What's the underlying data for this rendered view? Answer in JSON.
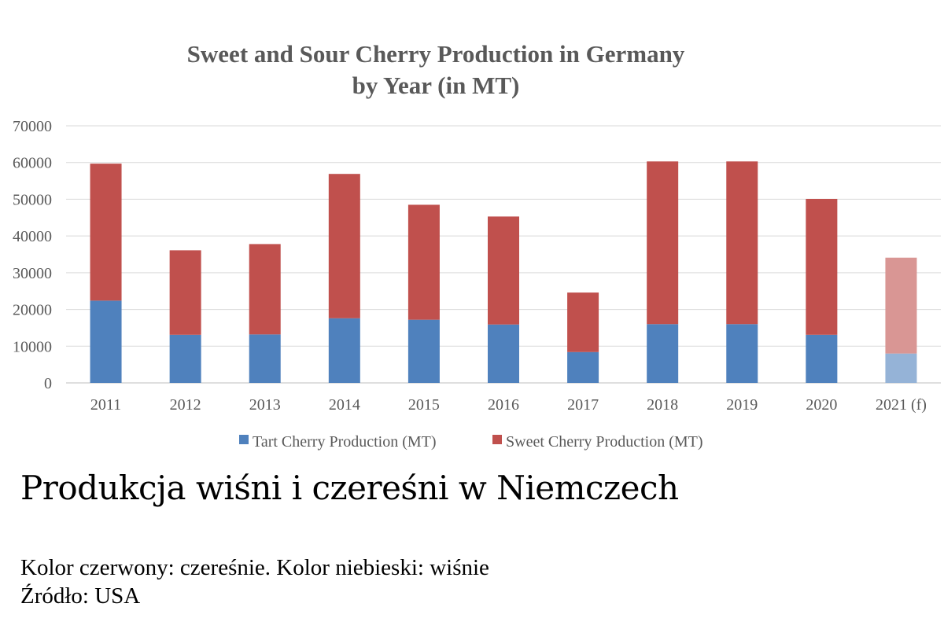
{
  "chart_data": {
    "type": "bar",
    "stacked": true,
    "title_lines": [
      "Sweet and Sour Cherry Production in Germany",
      "by Year (in MT)"
    ],
    "categories": [
      "2011",
      "2012",
      "2013",
      "2014",
      "2015",
      "2016",
      "2017",
      "2018",
      "2019",
      "2020",
      "2021 (f)"
    ],
    "series": [
      {
        "name": "Tart Cherry Production (MT)",
        "color": "#4f81bd",
        "forecast_color": "#95b3d7",
        "values": [
          22400,
          13100,
          13200,
          17600,
          17200,
          15900,
          8400,
          16000,
          16000,
          13100,
          8000
        ]
      },
      {
        "name": "Sweet Cherry Production (MT)",
        "color": "#c0504d",
        "forecast_color": "#d99694",
        "values": [
          37300,
          23000,
          24600,
          39300,
          31300,
          29400,
          16200,
          44300,
          44300,
          37000,
          26100
        ]
      }
    ],
    "forecast_index": 10,
    "ylim": [
      0,
      70000
    ],
    "yticks": [
      0,
      10000,
      20000,
      30000,
      40000,
      50000,
      60000,
      70000
    ],
    "grid": true,
    "legend_position": "bottom"
  },
  "caption": {
    "heading": "Produkcja wiśni i czereśni w Niemczech",
    "color_note": "Kolor czerwony: czereśnie. Kolor niebieski: wiśnie",
    "source": "Źródło: USA"
  }
}
